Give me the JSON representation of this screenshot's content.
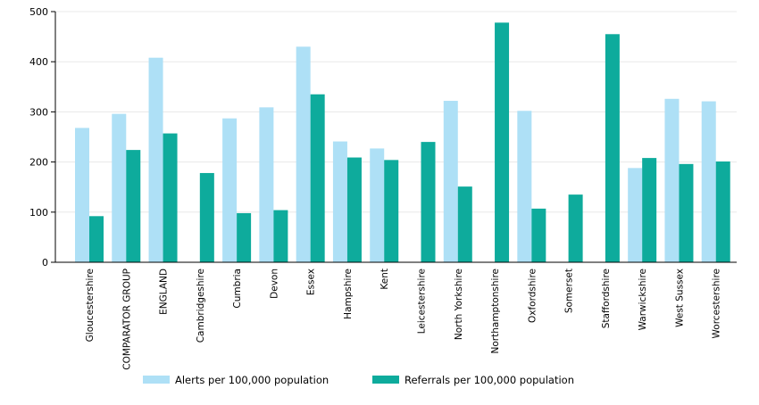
{
  "chart_data": {
    "type": "bar",
    "title": "",
    "xlabel": "",
    "ylabel": "",
    "ylim": [
      0,
      500
    ],
    "yticks": [
      0,
      100,
      200,
      300,
      400,
      500
    ],
    "grid": true,
    "legend_position": "bottom",
    "categories": [
      "Gloucestershire",
      "COMPARATOR GROUP",
      "ENGLAND",
      "Cambridgeshire",
      "Cumbria",
      "Devon",
      "Essex",
      "Hampshire",
      "Kent",
      "Leicestershire",
      "North Yorkshire",
      "Northamptonshire",
      "Oxfordshire",
      "Somerset",
      "Staffordshire",
      "Warwickshire",
      "West Sussex",
      "Worcestershire"
    ],
    "series": [
      {
        "name": "Alerts per 100,000 population",
        "color": "#aee0f6",
        "values": [
          268,
          296,
          408,
          null,
          287,
          309,
          430,
          241,
          227,
          null,
          322,
          null,
          302,
          null,
          null,
          188,
          326,
          321
        ]
      },
      {
        "name": "Referrals per 100,000 population",
        "color": "#0eab9c",
        "values": [
          92,
          224,
          257,
          178,
          98,
          104,
          335,
          209,
          204,
          240,
          151,
          478,
          107,
          135,
          455,
          208,
          196,
          201
        ]
      }
    ]
  }
}
